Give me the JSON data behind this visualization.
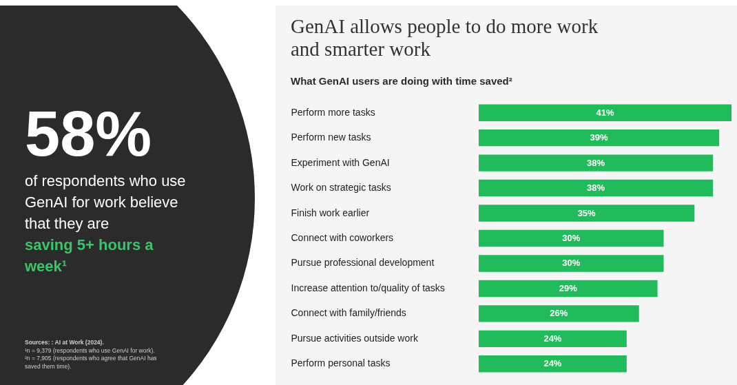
{
  "chart_data": [
    {
      "type": "other",
      "title": "58%",
      "annotations": [
        "of respondents who use GenAI for work believe that they are",
        "saving 5+ hours a week¹",
        "Sources: : AI at Work (2024).",
        "¹n = 9,379 (respondents who use GenAI for work).",
        "²n = 7,905 (respondents who agree that GenAI has saved them time)."
      ]
    },
    {
      "type": "bar",
      "orientation": "horizontal",
      "title": "GenAI allows people to do more work and smarter work",
      "subtitle": "What GenAI users are doing with time saved²",
      "categories": [
        "Perform more tasks",
        "Perform new tasks",
        "Experiment with GenAI",
        "Work on strategic tasks",
        "Finish work earlier",
        "Connect with coworkers",
        "Pursue professional development",
        "Increase attention to/quality of tasks",
        "Connect with family/friends",
        "Pursue activities outside work",
        "Perform personal tasks"
      ],
      "values": [
        41,
        39,
        38,
        38,
        35,
        30,
        30,
        29,
        26,
        24,
        24
      ],
      "value_labels": [
        "41%",
        "39%",
        "38%",
        "38%",
        "35%",
        "30%",
        "30%",
        "29%",
        "26%",
        "24%",
        "24%"
      ],
      "color": "#22bb5b"
    }
  ]
}
